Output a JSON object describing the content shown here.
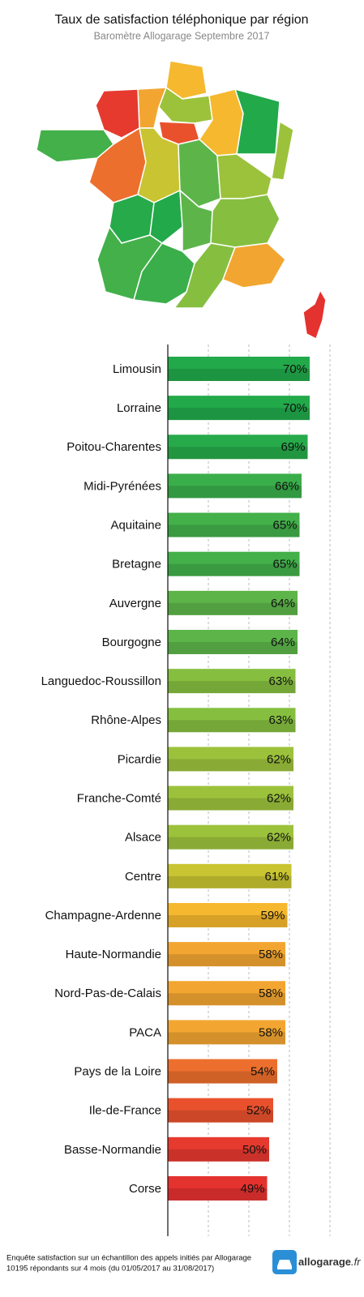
{
  "chart_data": {
    "type": "bar",
    "orientation": "horizontal",
    "title": "Taux de satisfaction téléphonique par région",
    "subtitle": "Baromètre Allogarage Septembre 2017",
    "categories": [
      "Limousin",
      "Lorraine",
      "Poitou-Charentes",
      "Midi-Pyrénées",
      "Aquitaine",
      "Bretagne",
      "Auvergne",
      "Bourgogne",
      "Languedoc-Roussillon",
      "Rhône-Alpes",
      "Picardie",
      "Franche-Comté",
      "Alsace",
      "Centre",
      "Champagne-Ardenne",
      "Haute-Normandie",
      "Nord-Pas-de-Calais",
      "PACA",
      "Pays de la Loire",
      "Ile-de-France",
      "Basse-Normandie",
      "Corse"
    ],
    "values": [
      70,
      70,
      69,
      66,
      65,
      65,
      64,
      64,
      63,
      63,
      62,
      62,
      62,
      61,
      59,
      58,
      58,
      58,
      54,
      52,
      50,
      49
    ],
    "value_labels": [
      "70%",
      "70%",
      "69%",
      "66%",
      "65%",
      "65%",
      "64%",
      "64%",
      "63%",
      "63%",
      "62%",
      "62%",
      "62%",
      "61%",
      "59%",
      "58%",
      "58%",
      "58%",
      "54%",
      "52%",
      "50%",
      "49%"
    ],
    "colors": [
      "#22a94a",
      "#22a94a",
      "#27aa4a",
      "#3aae4a",
      "#43b04a",
      "#43b04a",
      "#5db54a",
      "#5db54a",
      "#86bf40",
      "#86bf40",
      "#9cc23c",
      "#9cc23c",
      "#9cc23c",
      "#c8c432",
      "#f5b82e",
      "#f2a631",
      "#f2a631",
      "#f2a631",
      "#ec6f2d",
      "#e9512d",
      "#e63a2f",
      "#e4322f"
    ],
    "xlim": [
      0,
      85
    ],
    "xticks": [
      0,
      20,
      40,
      60,
      80
    ],
    "grid": true
  },
  "footer": {
    "note": [
      "Enquête satisfaction sur un échantillon des appels initiés par Allogarage",
      "10195 répondants sur 4 mois (du 01/05/2017 au 31/08/2017)"
    ],
    "logo": {
      "name": "allogarage",
      "tld": ".fr"
    }
  }
}
